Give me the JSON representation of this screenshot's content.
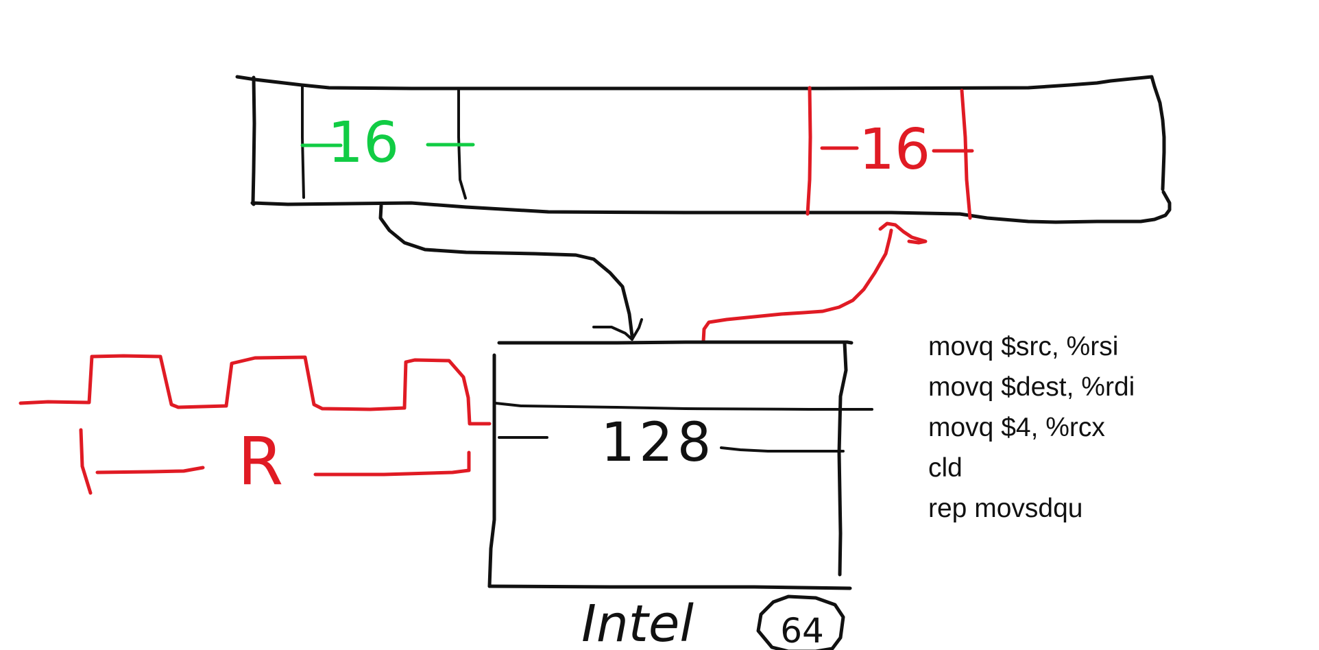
{
  "colors": {
    "black": "#111111",
    "green": "#11cc44",
    "red": "#e01b24"
  },
  "memory": {
    "source_block_label": "16",
    "dest_block_label": "16"
  },
  "register": {
    "width_label": "128",
    "bits_label": "64",
    "cpu_label": "Intel"
  },
  "clock": {
    "label": "R"
  },
  "assembly": [
    "movq $src, %rsi",
    "movq $dest, %rdi",
    "movq $4, %rcx",
    "cld",
    "rep movsdqu"
  ]
}
